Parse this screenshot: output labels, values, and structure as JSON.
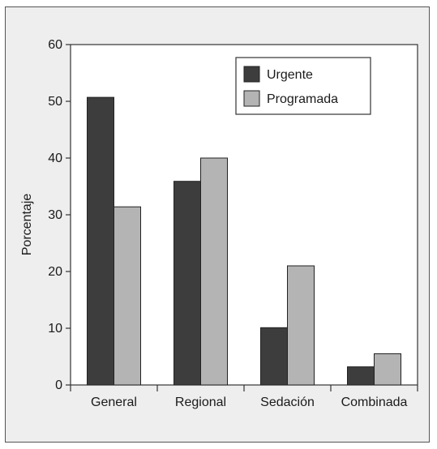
{
  "chart_data": {
    "type": "bar",
    "title": "",
    "xlabel": "",
    "ylabel": "Porcentaje",
    "ylim": [
      0,
      60
    ],
    "yticks": [
      0,
      10,
      20,
      30,
      40,
      50,
      60
    ],
    "categories": [
      "General",
      "Regional",
      "Sedación",
      "Combinada"
    ],
    "series": [
      {
        "name": "Urgente",
        "values": [
          50.7,
          35.9,
          10.1,
          3.2
        ],
        "color": "#3d3d3d"
      },
      {
        "name": "Programada",
        "values": [
          31.4,
          40.0,
          21.0,
          5.5
        ],
        "color": "#b4b4b4"
      }
    ],
    "grid": false,
    "legend_position": "top-right",
    "background": "#eeeeee"
  }
}
